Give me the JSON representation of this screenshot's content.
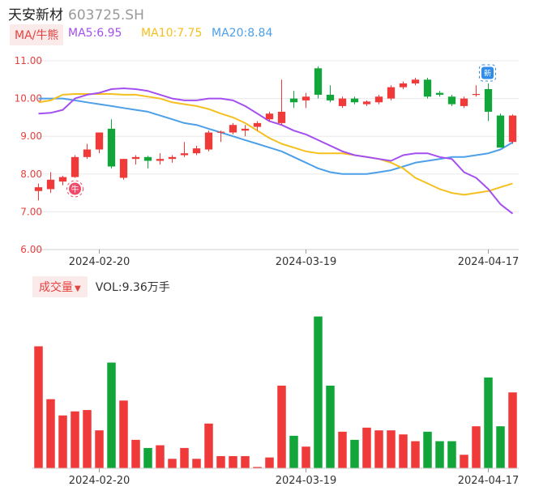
{
  "header": {
    "name": "天安新材",
    "code": "603725.SH"
  },
  "legend": {
    "indicator_label": "MA/牛熊",
    "ma5": "MA5:6.95",
    "ma10": "MA10:7.75",
    "ma20": "MA20:8.84"
  },
  "volume_legend": {
    "label": "成交量",
    "value": "VOL:9.36万手"
  },
  "badges": {
    "bull": "牛",
    "new": "新"
  },
  "colors": {
    "up": "#f03a3a",
    "down": "#12a53a",
    "ma5": "#a44ff0",
    "ma10": "#f5c01f",
    "ma20": "#4d9fe8",
    "axis_text": "#e5413f",
    "grid": "#e8e8e8"
  },
  "chart_data": [
    {
      "type": "candlestick",
      "yticks": [
        "11.00",
        "10.00",
        "9.00",
        "8.00",
        "7.00",
        "6.00"
      ],
      "ylim": [
        6,
        11
      ],
      "xticks": [
        {
          "index": 5,
          "label": "2024-02-20"
        },
        {
          "index": 22,
          "label": "2024-03-19"
        },
        {
          "index": 37,
          "label": "2024-04-17"
        }
      ],
      "candles": [
        {
          "o": 7.55,
          "h": 7.75,
          "l": 7.3,
          "c": 7.65
        },
        {
          "o": 7.6,
          "h": 8.05,
          "l": 7.5,
          "c": 7.85
        },
        {
          "o": 7.8,
          "h": 7.95,
          "l": 7.7,
          "c": 7.92
        },
        {
          "o": 7.92,
          "h": 8.5,
          "l": 7.9,
          "c": 8.45
        },
        {
          "o": 8.45,
          "h": 8.8,
          "l": 8.4,
          "c": 8.65
        },
        {
          "o": 8.65,
          "h": 9.1,
          "l": 8.55,
          "c": 9.1
        },
        {
          "o": 9.2,
          "h": 9.45,
          "l": 8.15,
          "c": 8.2
        },
        {
          "o": 7.9,
          "h": 8.4,
          "l": 7.85,
          "c": 8.4
        },
        {
          "o": 8.4,
          "h": 8.5,
          "l": 8.25,
          "c": 8.45
        },
        {
          "o": 8.45,
          "h": 8.48,
          "l": 8.15,
          "c": 8.35
        },
        {
          "o": 8.35,
          "h": 8.55,
          "l": 8.25,
          "c": 8.4
        },
        {
          "o": 8.4,
          "h": 8.5,
          "l": 8.3,
          "c": 8.45
        },
        {
          "o": 8.5,
          "h": 8.85,
          "l": 8.45,
          "c": 8.55
        },
        {
          "o": 8.55,
          "h": 8.75,
          "l": 8.5,
          "c": 8.68
        },
        {
          "o": 8.65,
          "h": 9.15,
          "l": 8.6,
          "c": 9.1
        },
        {
          "o": 9.1,
          "h": 9.15,
          "l": 8.85,
          "c": 9.12
        },
        {
          "o": 9.1,
          "h": 9.35,
          "l": 9.05,
          "c": 9.3
        },
        {
          "o": 9.15,
          "h": 9.3,
          "l": 9.0,
          "c": 9.2
        },
        {
          "o": 9.25,
          "h": 9.4,
          "l": 9.15,
          "c": 9.35
        },
        {
          "o": 9.45,
          "h": 9.65,
          "l": 9.4,
          "c": 9.6
        },
        {
          "o": 9.35,
          "h": 10.5,
          "l": 9.3,
          "c": 9.65
        },
        {
          "o": 10.0,
          "h": 10.2,
          "l": 9.75,
          "c": 9.9
        },
        {
          "o": 9.95,
          "h": 10.15,
          "l": 9.75,
          "c": 10.05
        },
        {
          "o": 10.8,
          "h": 10.85,
          "l": 10.0,
          "c": 10.1
        },
        {
          "o": 10.1,
          "h": 10.35,
          "l": 9.9,
          "c": 9.95
        },
        {
          "o": 9.8,
          "h": 10.05,
          "l": 9.75,
          "c": 10.0
        },
        {
          "o": 10.0,
          "h": 10.05,
          "l": 9.85,
          "c": 9.9
        },
        {
          "o": 9.85,
          "h": 9.95,
          "l": 9.8,
          "c": 9.92
        },
        {
          "o": 9.9,
          "h": 10.1,
          "l": 9.85,
          "c": 10.05
        },
        {
          "o": 10.0,
          "h": 10.35,
          "l": 9.95,
          "c": 10.3
        },
        {
          "o": 10.3,
          "h": 10.45,
          "l": 10.25,
          "c": 10.4
        },
        {
          "o": 10.4,
          "h": 10.55,
          "l": 10.35,
          "c": 10.5
        },
        {
          "o": 10.5,
          "h": 10.55,
          "l": 10.0,
          "c": 10.05
        },
        {
          "o": 10.15,
          "h": 10.2,
          "l": 10.05,
          "c": 10.1
        },
        {
          "o": 10.05,
          "h": 10.1,
          "l": 9.8,
          "c": 9.85
        },
        {
          "o": 9.8,
          "h": 10.05,
          "l": 9.75,
          "c": 10.0
        },
        {
          "o": 10.1,
          "h": 10.35,
          "l": 10.05,
          "c": 10.12
        },
        {
          "o": 10.25,
          "h": 10.4,
          "l": 9.4,
          "c": 9.65
        },
        {
          "o": 9.55,
          "h": 9.6,
          "l": 8.7,
          "c": 8.7
        },
        {
          "o": 8.85,
          "h": 9.58,
          "l": 8.8,
          "c": 9.55
        }
      ],
      "ma5": [
        9.6,
        9.62,
        9.7,
        10.0,
        10.1,
        10.15,
        10.25,
        10.27,
        10.25,
        10.2,
        10.1,
        10.0,
        9.95,
        9.95,
        10.0,
        10.0,
        9.95,
        9.8,
        9.6,
        9.4,
        9.3,
        9.15,
        9.05,
        8.9,
        8.75,
        8.6,
        8.5,
        8.45,
        8.4,
        8.35,
        8.5,
        8.55,
        8.55,
        8.45,
        8.4,
        8.05,
        7.9,
        7.6,
        7.2,
        6.95
      ],
      "ma10": [
        9.9,
        9.95,
        10.1,
        10.12,
        10.12,
        10.12,
        10.12,
        10.1,
        10.1,
        10.05,
        10.0,
        9.9,
        9.85,
        9.8,
        9.72,
        9.6,
        9.5,
        9.35,
        9.15,
        8.95,
        8.8,
        8.7,
        8.6,
        8.55,
        8.55,
        8.55,
        8.5,
        8.45,
        8.4,
        8.3,
        8.15,
        7.9,
        7.75,
        7.6,
        7.5,
        7.45,
        7.5,
        7.55,
        7.65,
        7.75
      ],
      "ma20": [
        10.0,
        10.0,
        10.0,
        9.95,
        9.9,
        9.85,
        9.8,
        9.75,
        9.7,
        9.65,
        9.55,
        9.45,
        9.35,
        9.3,
        9.2,
        9.1,
        9.0,
        8.9,
        8.8,
        8.7,
        8.6,
        8.45,
        8.3,
        8.15,
        8.05,
        8.0,
        8.0,
        8.0,
        8.05,
        8.1,
        8.2,
        8.3,
        8.35,
        8.4,
        8.45,
        8.45,
        8.5,
        8.55,
        8.65,
        8.84
      ]
    },
    {
      "type": "bar",
      "series": "volume",
      "values": [
        9.0,
        5.1,
        3.9,
        4.2,
        4.3,
        2.8,
        7.8,
        5.0,
        2.1,
        1.5,
        1.7,
        0.7,
        1.5,
        0.7,
        3.3,
        0.9,
        0.9,
        0.9,
        0.1,
        0.8,
        6.1,
        2.4,
        1.6,
        11.2,
        6.1,
        2.7,
        2.1,
        3.0,
        2.8,
        2.8,
        2.5,
        2.0,
        2.7,
        2.0,
        2.0,
        1.0,
        3.1,
        6.7,
        3.1,
        5.6
      ]
    }
  ]
}
